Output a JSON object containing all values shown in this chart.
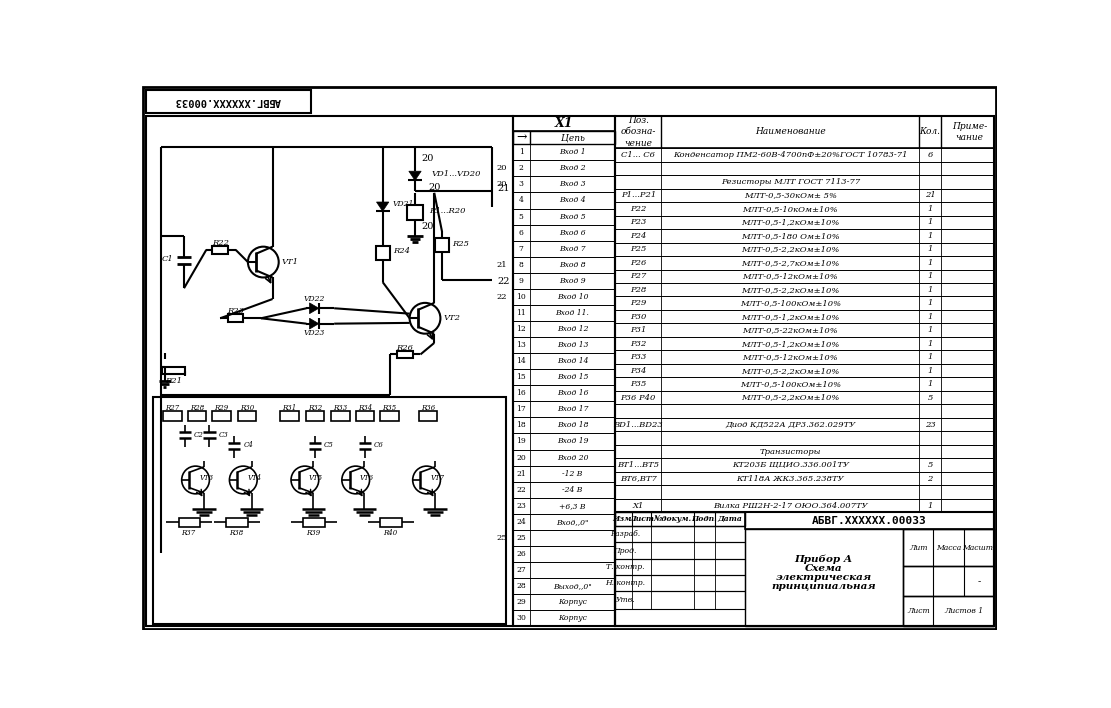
{
  "bg_color": "#ffffff",
  "doc_number": "АБВГ.XXXXXX.00033",
  "title_line1": "Прибор А",
  "title_line2": "Схема",
  "title_line3": "электрическая",
  "title_line4": "принципиальная",
  "liter": "Лит",
  "massa": "Масса",
  "masshtab": "Масшт.",
  "masshtab_val": "-",
  "sheet_lbl": "Лист",
  "sheets_lbl": "Листов 1",
  "connector_header": "X1",
  "connector_arrow": "→",
  "connector_col": "Цепь",
  "connector_rows": [
    [
      1,
      "Вход 1"
    ],
    [
      2,
      "Вход 2"
    ],
    [
      3,
      "Вход 3"
    ],
    [
      4,
      "Вход 4"
    ],
    [
      5,
      "Вход 5"
    ],
    [
      6,
      "Вход 6"
    ],
    [
      7,
      "Вход 7"
    ],
    [
      8,
      "Вход 8"
    ],
    [
      9,
      "Вход 9"
    ],
    [
      10,
      "Вход 10"
    ],
    [
      11,
      "Вход 11."
    ],
    [
      12,
      "Вход 12"
    ],
    [
      13,
      "Вход 13"
    ],
    [
      14,
      "Вход 14"
    ],
    [
      15,
      "Вход 15"
    ],
    [
      16,
      "Вход 16"
    ],
    [
      17,
      "Вход 17"
    ],
    [
      18,
      "Вход 18"
    ],
    [
      19,
      "Вход 19"
    ],
    [
      20,
      "Вход 20"
    ],
    [
      21,
      "-12 В"
    ],
    [
      22,
      "-24 В"
    ],
    [
      23,
      "+6,3 В"
    ],
    [
      24,
      "Вход,,0\""
    ],
    [
      25,
      ""
    ],
    [
      26,
      ""
    ],
    [
      27,
      ""
    ],
    [
      28,
      "Выход,,0\""
    ],
    [
      29,
      "Корпус"
    ],
    [
      30,
      "Корпус"
    ]
  ],
  "conn_group_labels": {
    "2": "20",
    "3": "20",
    "8": "21",
    "10": "22",
    "25": "25"
  },
  "bom_col_pos": "Поз.\nобозна-\nчение",
  "bom_col_name": "Наименование",
  "bom_col_qty": "Кол.",
  "bom_col_note": "Приме-\nчание",
  "bom_rows": [
    [
      "С1... С6",
      "Конденсатор ПМ2-60В-4700пФ±20%ГОСТ 10783-71",
      "6",
      ""
    ],
    [
      "",
      "",
      "",
      ""
    ],
    [
      "",
      "Резисторы МЛТ ГОСТ 7113-77",
      "",
      ""
    ],
    [
      "Р1...Р21",
      "МЛТ-0,5-30кОм± 5%",
      "21",
      ""
    ],
    [
      "Р22",
      "МЛТ-0,5-10кОм±10%",
      "1",
      ""
    ],
    [
      "Р23",
      "МЛТ-0,5-1,2кОм±10%",
      "1",
      ""
    ],
    [
      "Р24",
      "МЛТ-0,5-180 Ом±10%",
      "1",
      ""
    ],
    [
      "Р25",
      "МЛТ-0,5-2,2кОм±10%",
      "1",
      ""
    ],
    [
      "Р26",
      "МЛТ-0,5-2,7кОм±10%",
      "1",
      ""
    ],
    [
      "Р27",
      "МЛТ-0,5-12кОм±10%",
      "1",
      ""
    ],
    [
      "Р28",
      "МЛТ-0,5-2,2кОм±10%",
      "1",
      ""
    ],
    [
      "Р29",
      "МЛТ-0,5-100кОм±10%",
      "1",
      ""
    ],
    [
      "Р30",
      "МЛТ-0,5-1,2кОм±10%",
      "1",
      ""
    ],
    [
      "Р31",
      "МЛТ-0,5-22кОм±10%",
      "1",
      ""
    ],
    [
      "Р32",
      "МЛТ-0,5-1,2кОм±10%",
      "1",
      ""
    ],
    [
      "Р33",
      "МЛТ-0,5-12кОм±10%",
      "1",
      ""
    ],
    [
      "Р34",
      "МЛТ-0,5-2,2кОм±10%",
      "1",
      ""
    ],
    [
      "Р35",
      "МЛТ-0,5-100кОм±10%",
      "1",
      ""
    ],
    [
      "Р36 Р40",
      "МЛТ-0,5-2,2кОм±10%",
      "5",
      ""
    ],
    [
      "",
      "",
      "",
      ""
    ],
    [
      "ВD1...ВD23",
      "Диод КД522А ДР3.362.029ТУ",
      "23",
      ""
    ],
    [
      "",
      "",
      "",
      ""
    ],
    [
      "",
      "Транзисторы",
      "",
      ""
    ],
    [
      "ВT1...ВT5",
      "КТ203Б ЩЦИО.336.001ТУ",
      "5",
      ""
    ],
    [
      "ВT6,ВT7",
      "КТ118А ЖК3.365.238ТУ",
      "2",
      ""
    ],
    [
      "",
      "",
      "",
      ""
    ],
    [
      "X1",
      "Вилка РШ2Н-2-17 ОЮО.364.007ТУ",
      "1",
      ""
    ]
  ],
  "stamp_labels": [
    "Изм.",
    "Лист",
    "№докум.",
    "Подп.",
    "Дата"
  ],
  "stamp_rows": [
    "Разраб.",
    "Прод.",
    "Т. контр.",
    "Н. контр.",
    "Утв."
  ]
}
